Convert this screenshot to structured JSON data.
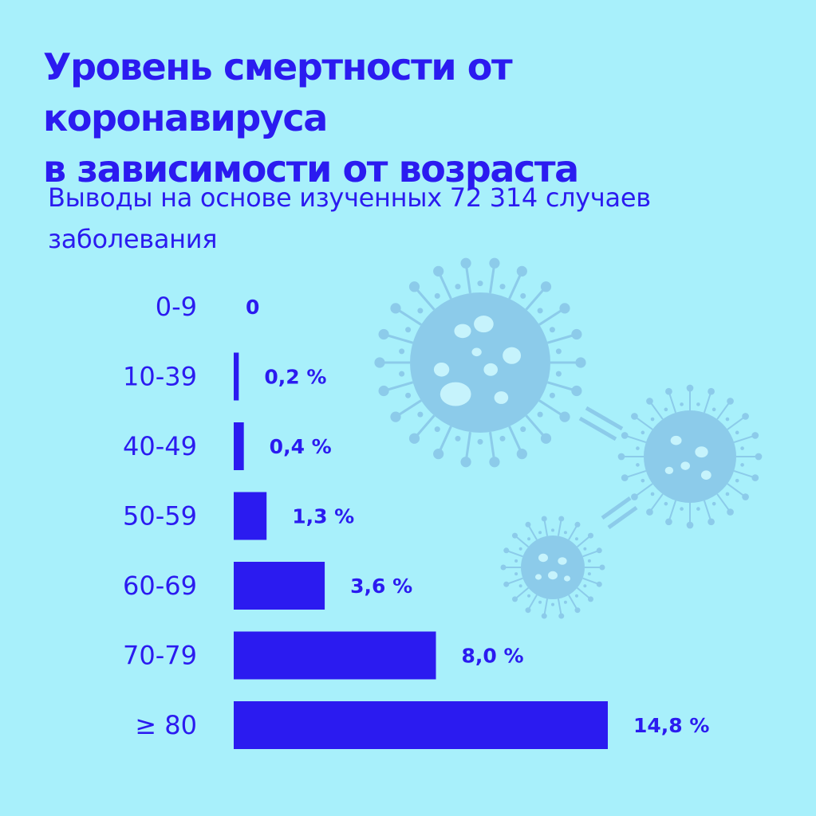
{
  "title_line1": "Уровень смертности от коронавируса",
  "title_line2": "в зависимости от возраста",
  "subtitle_line1": "Выводы на основе изученных 72 314 случаев",
  "subtitle_line2": "заболевания",
  "colors": {
    "background": "#a8f0fb",
    "bar": "#2b1bf0",
    "text": "#2b1bf0",
    "virus_decoration": "#8ccbea"
  },
  "decoration": {
    "icon": "coronavirus-molecule-icon"
  },
  "chart_data": {
    "type": "bar",
    "orientation": "horizontal",
    "categories": [
      "0-9",
      "10-39",
      "40-49",
      "50-59",
      "60-69",
      "70-79",
      "≥ 80"
    ],
    "values": [
      0,
      0.2,
      0.4,
      1.3,
      3.6,
      8.0,
      14.8
    ],
    "value_labels": [
      "0",
      "0,2 %",
      "0,4 %",
      "1,3 %",
      "3,6 %",
      "8,0 %",
      "14,8 %"
    ],
    "unit": "%",
    "title": "Уровень смертности от коронавируса в зависимости от возраста",
    "subtitle": "Выводы на основе изученных 72 314 случаев заболевания",
    "xlabel": "",
    "ylabel": "",
    "grid": false,
    "legend": false
  }
}
